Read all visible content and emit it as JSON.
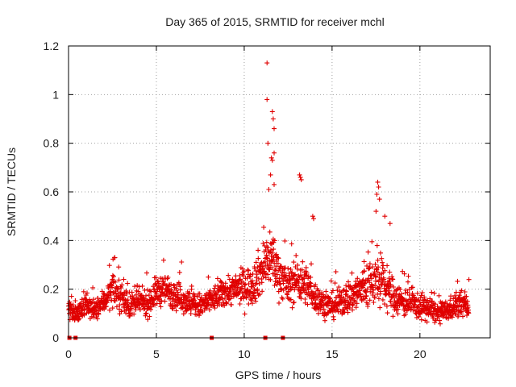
{
  "chart_data": {
    "type": "scatter",
    "title": "Day 365 of 2015, SRMTID for receiver mchl",
    "xlabel": "GPS time / hours",
    "ylabel": "SRMTID / TECUs",
    "xlim": [
      0,
      24
    ],
    "ylim": [
      0,
      1.2
    ],
    "x_ticks": [
      0,
      5,
      10,
      15,
      20
    ],
    "x_tick_labels": [
      "0",
      "5",
      "10",
      "15",
      "20"
    ],
    "y_ticks": [
      0,
      0.2,
      0.4,
      0.6,
      0.8,
      1.0,
      1.2
    ],
    "y_tick_labels": [
      "0",
      "0.2",
      "0.4",
      "0.6",
      "0.8",
      "1",
      "1.2"
    ],
    "grid": true,
    "marker": "plus",
    "series": [
      {
        "name": "SRMTID",
        "color": "#e00000",
        "envelope_hours": [
          0,
          0.5,
          1,
          1.5,
          2,
          2.5,
          3,
          3.5,
          4,
          4.5,
          5,
          5.5,
          6,
          6.5,
          7,
          7.5,
          8,
          8.5,
          9,
          9.5,
          10,
          10.5,
          11,
          11.5,
          12,
          12.5,
          13,
          13.5,
          14,
          14.5,
          15,
          15.5,
          16,
          16.5,
          17,
          17.5,
          18,
          18.5,
          19,
          19.5,
          20,
          20.5,
          21,
          21.5,
          22,
          22.5,
          22.8
        ],
        "envelope_median": [
          0.12,
          0.1,
          0.13,
          0.11,
          0.15,
          0.2,
          0.17,
          0.13,
          0.15,
          0.14,
          0.19,
          0.2,
          0.18,
          0.16,
          0.14,
          0.13,
          0.15,
          0.17,
          0.19,
          0.2,
          0.21,
          0.22,
          0.28,
          0.34,
          0.26,
          0.21,
          0.24,
          0.22,
          0.17,
          0.14,
          0.13,
          0.15,
          0.17,
          0.19,
          0.22,
          0.24,
          0.21,
          0.17,
          0.15,
          0.14,
          0.13,
          0.12,
          0.1,
          0.11,
          0.13,
          0.14,
          0.12
        ],
        "envelope_spread": [
          0.04,
          0.04,
          0.05,
          0.04,
          0.05,
          0.06,
          0.06,
          0.05,
          0.05,
          0.05,
          0.06,
          0.06,
          0.06,
          0.05,
          0.05,
          0.05,
          0.05,
          0.05,
          0.06,
          0.06,
          0.07,
          0.08,
          0.1,
          0.12,
          0.09,
          0.07,
          0.09,
          0.08,
          0.06,
          0.05,
          0.05,
          0.06,
          0.07,
          0.08,
          0.1,
          0.1,
          0.09,
          0.07,
          0.06,
          0.05,
          0.05,
          0.05,
          0.04,
          0.04,
          0.05,
          0.05,
          0.04
        ],
        "peaks": [
          {
            "x": 11.3,
            "y": 1.13
          },
          {
            "x": 11.3,
            "y": 0.98
          },
          {
            "x": 11.6,
            "y": 0.93
          },
          {
            "x": 11.65,
            "y": 0.9
          },
          {
            "x": 11.7,
            "y": 0.86
          },
          {
            "x": 11.35,
            "y": 0.8
          },
          {
            "x": 11.7,
            "y": 0.76
          },
          {
            "x": 11.55,
            "y": 0.74
          },
          {
            "x": 11.6,
            "y": 0.73
          },
          {
            "x": 11.5,
            "y": 0.67
          },
          {
            "x": 11.4,
            "y": 0.61
          },
          {
            "x": 11.7,
            "y": 0.63
          },
          {
            "x": 13.15,
            "y": 0.67
          },
          {
            "x": 13.2,
            "y": 0.66
          },
          {
            "x": 13.25,
            "y": 0.65
          },
          {
            "x": 17.6,
            "y": 0.64
          },
          {
            "x": 17.65,
            "y": 0.62
          },
          {
            "x": 17.55,
            "y": 0.59
          },
          {
            "x": 17.7,
            "y": 0.57
          },
          {
            "x": 17.5,
            "y": 0.52
          },
          {
            "x": 18.0,
            "y": 0.5
          },
          {
            "x": 13.9,
            "y": 0.5
          },
          {
            "x": 13.95,
            "y": 0.49
          },
          {
            "x": 18.3,
            "y": 0.47
          }
        ],
        "zero_markers_hours": [
          0.05,
          0.4,
          8.15,
          11.2,
          12.2
        ]
      }
    ]
  }
}
